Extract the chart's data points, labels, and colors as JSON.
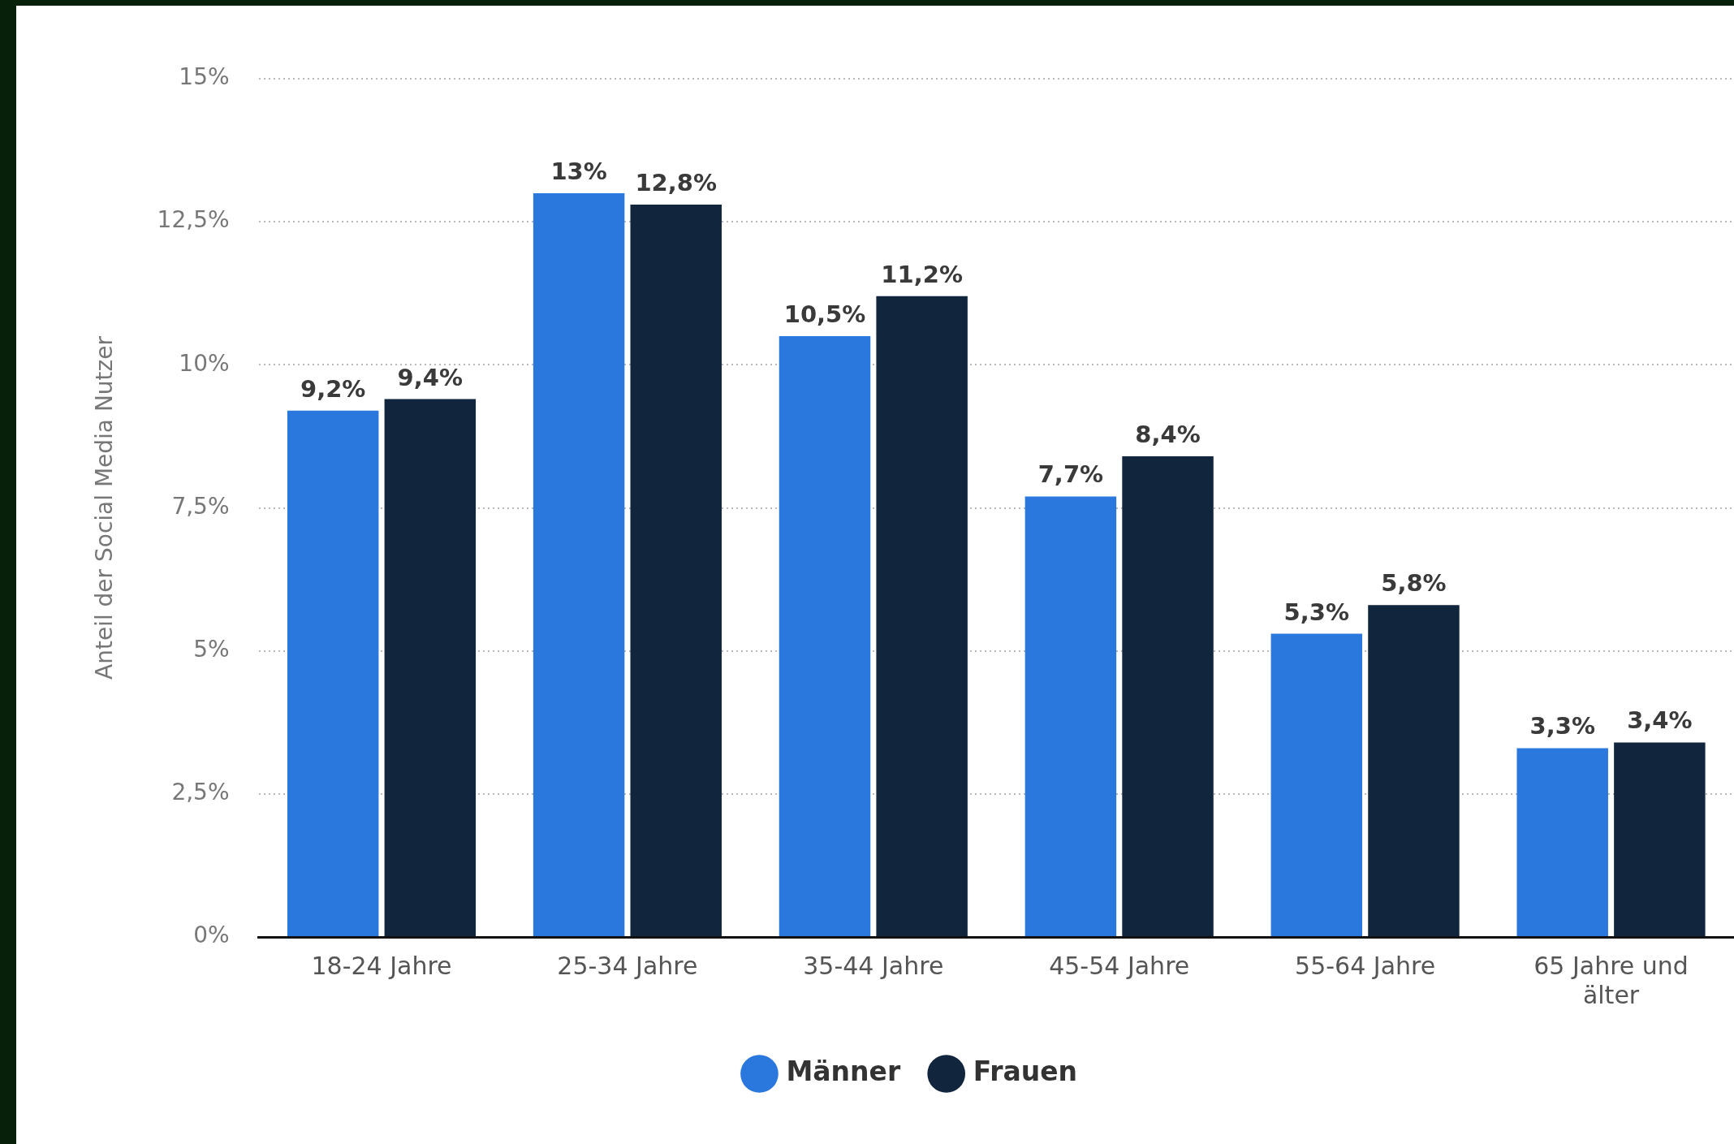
{
  "chart_data": {
    "type": "bar",
    "ylabel": "Anteil der Social Media Nutzer",
    "categories": [
      "18-24 Jahre",
      "25-34 Jahre",
      "35-44 Jahre",
      "45-54 Jahre",
      "55-64 Jahre",
      "65 Jahre und älter"
    ],
    "series": [
      {
        "name": "Männer",
        "color": "#2a78dd",
        "values": [
          9.2,
          13,
          10.5,
          7.7,
          5.3,
          3.3
        ],
        "value_labels": [
          "9,2%",
          "13%",
          "10,5%",
          "7,7%",
          "5,3%",
          "3,3%"
        ]
      },
      {
        "name": "Frauen",
        "color": "#11253d",
        "values": [
          9.4,
          12.8,
          11.2,
          8.4,
          5.8,
          3.4
        ],
        "value_labels": [
          "9,4%",
          "12,8%",
          "11,2%",
          "8,4%",
          "5,8%",
          "3,4%"
        ]
      }
    ],
    "ylim": [
      0,
      15
    ],
    "yticks": [
      {
        "value": 0,
        "label": "0%"
      },
      {
        "value": 2.5,
        "label": "2,5%"
      },
      {
        "value": 5,
        "label": "5%"
      },
      {
        "value": 7.5,
        "label": "7,5%"
      },
      {
        "value": 10,
        "label": "10%"
      },
      {
        "value": 12.5,
        "label": "12,5%"
      },
      {
        "value": 15,
        "label": "15%"
      }
    ],
    "grid": "y",
    "legend": "bottom",
    "marker": "circle"
  }
}
